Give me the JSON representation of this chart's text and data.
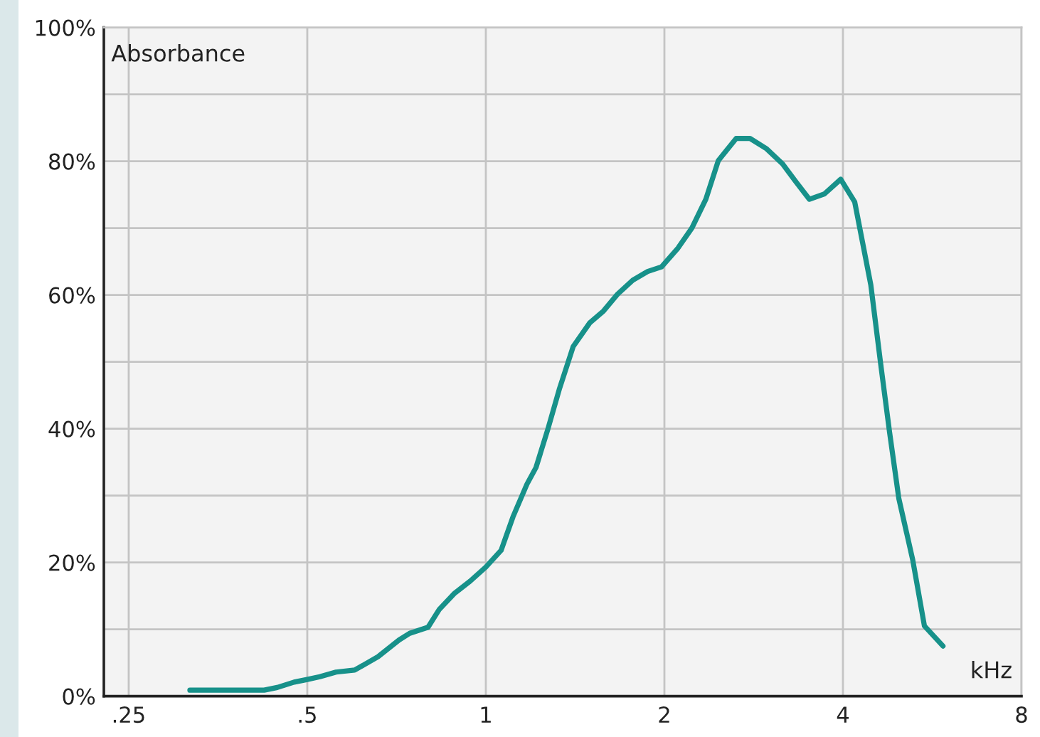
{
  "chart_data": {
    "type": "line",
    "xlabel": "kHz",
    "ylabel": "Absorbance",
    "log": "x",
    "grid": true,
    "xlim": [
      0.227,
      8
    ],
    "xticks": [
      {
        "value": 0.25,
        "label": ".25"
      },
      {
        "value": 0.5,
        "label": ".5"
      },
      1,
      2,
      4,
      8
    ],
    "ylim": [
      0,
      100
    ],
    "yticks": [
      {
        "value": 0,
        "label": "0%"
      },
      {
        "value": 10,
        "label": null
      },
      {
        "value": 20,
        "label": "20%"
      },
      {
        "value": 30,
        "label": null
      },
      {
        "value": 40,
        "label": "40%"
      },
      {
        "value": 50,
        "label": null
      },
      {
        "value": 60,
        "label": "60%"
      },
      {
        "value": 70,
        "label": null
      },
      {
        "value": 80,
        "label": "80%"
      },
      {
        "value": 90,
        "label": null
      },
      {
        "value": 100,
        "label": "100%"
      }
    ],
    "x": [
      0.317,
      0.423,
      0.445,
      0.475,
      0.5,
      0.525,
      0.559,
      0.601,
      0.658,
      0.714,
      0.744,
      0.799,
      0.835,
      0.886,
      0.941,
      1.0,
      1.061,
      1.111,
      1.173,
      1.215,
      1.272,
      1.33,
      1.404,
      1.496,
      1.579,
      1.667,
      1.769,
      1.874,
      1.978,
      2.108,
      2.225,
      2.349,
      2.466,
      2.642,
      2.789,
      2.969,
      3.164,
      3.34,
      3.512,
      3.722,
      3.965,
      4.187,
      4.457,
      4.64,
      4.793,
      4.968,
      5.244,
      5.488,
      5.898
    ],
    "series": [
      {
        "color": "#17918a",
        "values": [
          0.9,
          0.9,
          1.3,
          2.1,
          2.5,
          2.9,
          3.6,
          3.9,
          5.9,
          8.4,
          9.4,
          10.3,
          13.0,
          15.4,
          17.2,
          19.3,
          21.8,
          26.8,
          31.7,
          34.2,
          39.9,
          45.9,
          52.3,
          55.8,
          57.6,
          60.1,
          62.2,
          63.5,
          64.2,
          67.0,
          70.0,
          74.3,
          80.1,
          83.4,
          83.4,
          81.9,
          79.6,
          76.8,
          74.3,
          75.1,
          77.3,
          73.9,
          61.5,
          49.1,
          39.5,
          29.6,
          20.4,
          10.5,
          7.5
        ]
      }
    ]
  }
}
